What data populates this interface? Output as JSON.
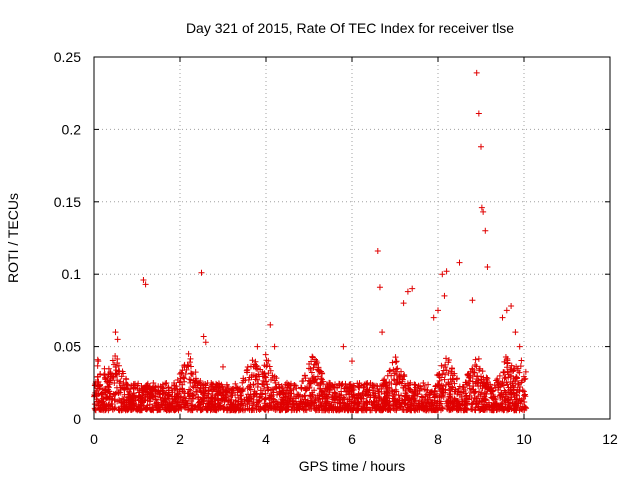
{
  "chart_data": {
    "type": "scatter",
    "title": "Day 321 of 2015, Rate Of TEC Index for receiver tlse",
    "xlabel": "GPS time / hours",
    "ylabel": "ROTI / TECUs",
    "xlim": [
      0,
      12
    ],
    "ylim": [
      0,
      0.25
    ],
    "xticks": [
      0,
      2,
      4,
      6,
      8,
      10,
      12
    ],
    "xtick_labels": [
      "0",
      "2",
      "4",
      "6",
      "8",
      "10",
      "12"
    ],
    "yticks": [
      0,
      0.05,
      0.1,
      0.15,
      0.2,
      0.25
    ],
    "ytick_labels": [
      "0",
      "0.05",
      "0.1",
      "0.15",
      "0.2",
      "0.25"
    ],
    "grid": true,
    "marker": "+",
    "color": "#e00000",
    "series": [
      {
        "name": "ROTI",
        "x": [
          0.1,
          0.5,
          0.55,
          1.15,
          1.2,
          2.2,
          2.5,
          2.55,
          2.6,
          3.0,
          3.8,
          4.1,
          4.2,
          5.0,
          5.8,
          6.0,
          6.6,
          6.65,
          6.7,
          7.2,
          7.3,
          7.4,
          7.9,
          8.0,
          8.1,
          8.15,
          8.2,
          8.5,
          8.8,
          8.9,
          8.95,
          9.0,
          9.02,
          9.05,
          9.1,
          9.15,
          9.5,
          9.6,
          9.7,
          9.8,
          9.9
        ],
        "y": [
          0.04,
          0.06,
          0.055,
          0.096,
          0.093,
          0.045,
          0.101,
          0.057,
          0.053,
          0.036,
          0.05,
          0.065,
          0.05,
          0.035,
          0.05,
          0.04,
          0.116,
          0.091,
          0.06,
          0.08,
          0.088,
          0.09,
          0.07,
          0.075,
          0.1,
          0.085,
          0.102,
          0.108,
          0.082,
          0.239,
          0.211,
          0.188,
          0.146,
          0.143,
          0.13,
          0.105,
          0.07,
          0.075,
          0.078,
          0.06,
          0.05
        ]
      }
    ],
    "background_band": {
      "x_range": [
        0,
        10.05
      ],
      "y_floor": 0.006,
      "y_typical_max": 0.025,
      "y_peak_max": 0.045
    }
  }
}
